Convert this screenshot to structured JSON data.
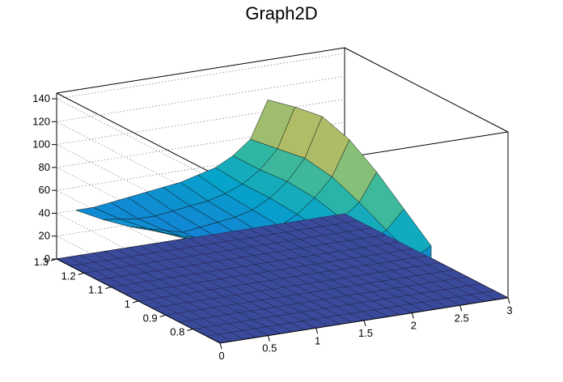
{
  "chart_data": {
    "type": "surface",
    "title": "Graph2D",
    "xlabel": "",
    "ylabel": "",
    "zlabel": "",
    "xlim": [
      0,
      3
    ],
    "ylim": [
      0.7,
      1.3
    ],
    "zlim": [
      0,
      145
    ],
    "x_ticks": [
      "0",
      "0.5",
      "1",
      "1.5",
      "2",
      "2.5",
      "3"
    ],
    "y_ticks": [
      "0.8",
      "0.9",
      "1",
      "1.1",
      "1.2",
      "1.3"
    ],
    "z_ticks": [
      "0",
      "20",
      "40",
      "60",
      "80",
      "100",
      "120",
      "140"
    ],
    "grid": true,
    "palette": [
      "#352a87",
      "#0f5cdd",
      "#1481d6",
      "#06a4ca",
      "#2eb7a4",
      "#87bf77",
      "#d1bb59",
      "#fec832",
      "#f9fb0e"
    ],
    "surface_x": [
      0.2,
      2.2
    ],
    "surface_y": [
      0.7,
      1.3
    ],
    "surface_z": [
      [
        40,
        40,
        42,
        44,
        46,
        48,
        50,
        54,
        58,
        66,
        78,
        110
      ],
      [
        44,
        42,
        40,
        40,
        42,
        44,
        46,
        50,
        56,
        66,
        82,
        116
      ],
      [
        50,
        46,
        42,
        38,
        40,
        42,
        44,
        48,
        56,
        68,
        86,
        120
      ],
      [
        58,
        52,
        46,
        40,
        38,
        40,
        42,
        46,
        54,
        66,
        82,
        112
      ],
      [
        66,
        58,
        52,
        46,
        42,
        38,
        40,
        44,
        50,
        60,
        72,
        96
      ],
      [
        76,
        66,
        58,
        52,
        46,
        42,
        38,
        40,
        44,
        52,
        60,
        76
      ],
      [
        84,
        74,
        64,
        58,
        54,
        50,
        46,
        42,
        40,
        44,
        48,
        56
      ]
    ]
  }
}
